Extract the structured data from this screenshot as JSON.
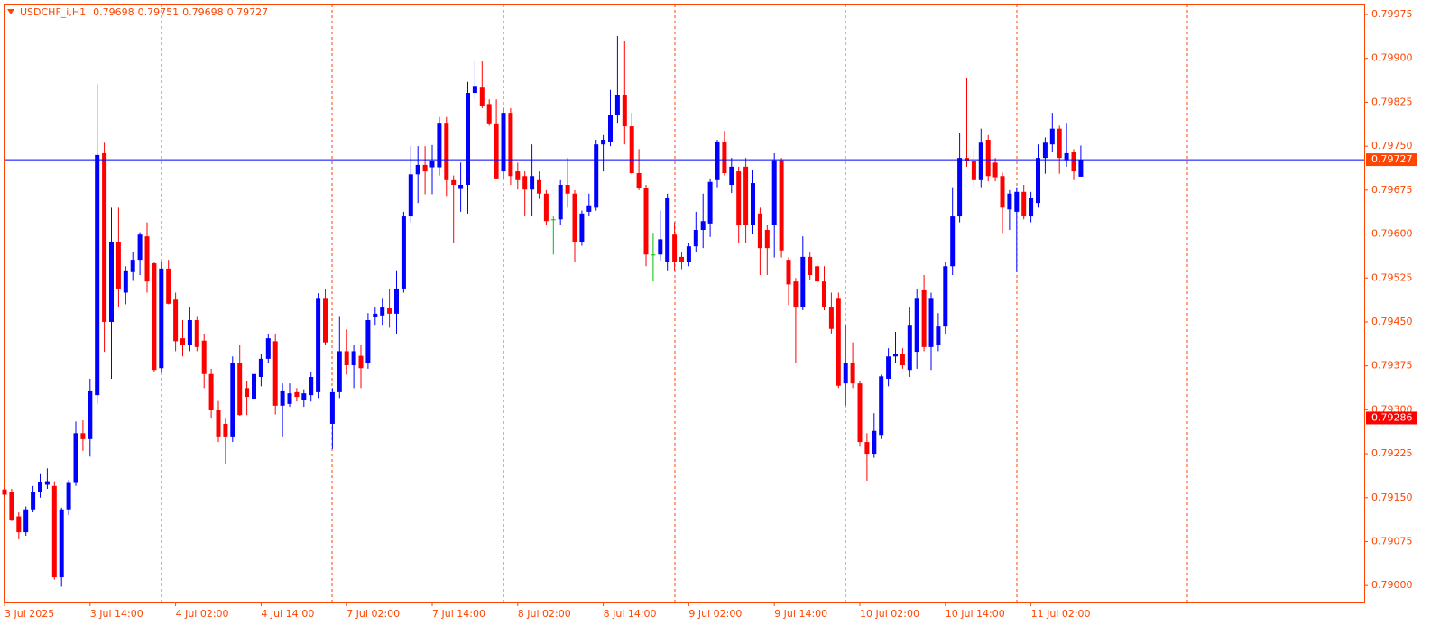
{
  "chart_data": {
    "type": "candlestick",
    "title": "USDCHF_i,H1",
    "ohlc_label": [
      0.79698,
      0.79751,
      0.79698,
      0.79727
    ],
    "categories": [
      "3 Jul 2025",
      null,
      null,
      null,
      null,
      null,
      null,
      null,
      null,
      null,
      null,
      null,
      "3 Jul 14:00",
      null,
      null,
      null,
      null,
      null,
      null,
      null,
      null,
      null,
      null,
      null,
      "4 Jul 02:00",
      null,
      null,
      null,
      null,
      null,
      null,
      null,
      null,
      null,
      null,
      null,
      "4 Jul 14:00",
      null,
      null,
      null,
      null,
      null,
      null,
      null,
      null,
      null,
      null,
      null,
      "7 Jul 02:00",
      null,
      null,
      null,
      null,
      null,
      null,
      null,
      null,
      null,
      null,
      null,
      "7 Jul 14:00",
      null,
      null,
      null,
      null,
      null,
      null,
      null,
      null,
      null,
      null,
      null,
      "8 Jul 02:00",
      null,
      null,
      null,
      null,
      null,
      null,
      null,
      null,
      null,
      null,
      null,
      "8 Jul 14:00",
      null,
      null,
      null,
      null,
      null,
      null,
      null,
      null,
      null,
      null,
      null,
      "9 Jul 02:00",
      null,
      null,
      null,
      null,
      null,
      null,
      null,
      null,
      null,
      null,
      null,
      "9 Jul 14:00",
      null,
      null,
      null,
      null,
      null,
      null,
      null,
      null,
      null,
      null,
      null,
      "10 Jul 02:00",
      null,
      null,
      null,
      null,
      null,
      null,
      null,
      null,
      null,
      null,
      null,
      "10 Jul 14:00",
      null,
      null,
      null,
      null,
      null,
      null,
      null,
      null,
      null,
      null,
      null,
      "11 Jul 02:00",
      null,
      null,
      null,
      null,
      null,
      null,
      null
    ],
    "open": [
      0.79164,
      0.7916,
      0.79118,
      0.79091,
      0.7913,
      0.7916,
      0.79172,
      0.7917,
      0.79014,
      0.7913,
      0.79175,
      0.7926,
      0.7925,
      0.79325,
      0.79738,
      0.7945,
      0.79587,
      0.795,
      0.79535,
      0.79556,
      0.79596,
      0.7955,
      0.79371,
      0.79541,
      0.79488,
      0.79422,
      0.7941,
      0.79453,
      0.79418,
      0.79361,
      0.79299,
      0.79276,
      0.79253,
      0.7938,
      0.79337,
      0.79319,
      0.79356,
      0.79387,
      0.79417,
      0.79307,
      0.7931,
      0.7933,
      0.79316,
      0.79325,
      0.7933,
      0.79491,
      0.79276,
      0.7933,
      0.794,
      0.79376,
      0.79392,
      0.7938,
      0.79458,
      0.79461,
      0.79473,
      0.79464,
      0.79507,
      0.7963,
      0.79702,
      0.79718,
      0.79714,
      0.79714,
      0.7979,
      0.79692,
      0.79677,
      0.79684,
      0.79841,
      0.7985,
      0.79822,
      0.79789,
      0.79707,
      0.79807,
      0.79707,
      0.79699,
      0.79676,
      0.79692,
      0.79669,
      0.79625,
      0.79625,
      0.79684,
      0.79669,
      0.79587,
      0.79638,
      0.79645,
      0.79753,
      0.79758,
      0.79803,
      0.79838,
      0.79784,
      0.79704,
      0.79679,
      0.79565,
      0.79565,
      0.79553,
      0.79599,
      0.79561,
      0.79553,
      0.79579,
      0.79607,
      0.79618,
      0.79692,
      0.79758,
      0.79684,
      0.79707,
      0.79715,
      0.79615,
      0.79635,
      0.79607,
      0.79615,
      0.79726,
      0.79556,
      0.79519,
      0.79476,
      0.79561,
      0.79545,
      0.79519,
      0.79476,
      0.79491,
      0.79345,
      0.7938,
      0.79345,
      0.79245,
      0.79225,
      0.79257,
      0.79353,
      0.79391,
      0.79396,
      0.79368,
      0.79399,
      0.79504,
      0.79407,
      0.7941,
      0.79442,
      0.79545,
      0.7963,
      0.7973,
      0.79724,
      0.79692,
      0.79761,
      0.79722,
      0.79699,
      0.79642,
      0.79638,
      0.79672,
      0.7963,
      0.79653,
      0.7973,
      0.79753,
      0.7978,
      0.79726,
      0.7974,
      0.79698
    ],
    "high": [
      0.79167,
      0.79165,
      0.79125,
      0.79135,
      0.7917,
      0.7919,
      0.792,
      0.79178,
      0.79133,
      0.7918,
      0.7928,
      0.79282,
      0.79353,
      0.79856,
      0.79756,
      0.79645,
      0.79645,
      0.79545,
      0.7957,
      0.79603,
      0.7962,
      0.79553,
      0.79553,
      0.79556,
      0.795,
      0.79453,
      0.79476,
      0.7946,
      0.7943,
      0.7937,
      0.79315,
      0.79285,
      0.79391,
      0.7941,
      0.79349,
      0.7936,
      0.79395,
      0.7943,
      0.7943,
      0.79345,
      0.79345,
      0.79337,
      0.79335,
      0.79365,
      0.79499,
      0.79507,
      0.79337,
      0.7946,
      0.79437,
      0.7941,
      0.7941,
      0.79465,
      0.79476,
      0.79491,
      0.79507,
      0.79538,
      0.79638,
      0.7975,
      0.7975,
      0.7975,
      0.79752,
      0.798,
      0.798,
      0.797,
      0.79722,
      0.7986,
      0.79895,
      0.79895,
      0.7983,
      0.7983,
      0.79815,
      0.79815,
      0.79722,
      0.79707,
      0.79753,
      0.79707,
      0.79675,
      0.7963,
      0.79692,
      0.7973,
      0.79675,
      0.7964,
      0.79669,
      0.79761,
      0.79769,
      0.79846,
      0.79938,
      0.7993,
      0.79807,
      0.79745,
      0.79684,
      0.79602,
      0.7964,
      0.79669,
      0.7962,
      0.7957,
      0.79584,
      0.79638,
      0.79669,
      0.79695,
      0.79761,
      0.79776,
      0.7973,
      0.79715,
      0.7973,
      0.7971,
      0.79645,
      0.79615,
      0.79738,
      0.7973,
      0.7956,
      0.79525,
      0.79596,
      0.7957,
      0.79553,
      0.79545,
      0.795,
      0.795,
      0.79445,
      0.79415,
      0.7935,
      0.7926,
      0.79294,
      0.7936,
      0.79405,
      0.79433,
      0.79405,
      0.79476,
      0.79507,
      0.7953,
      0.795,
      0.79465,
      0.79553,
      0.7968,
      0.79772,
      0.79866,
      0.79745,
      0.7978,
      0.79769,
      0.7973,
      0.79705,
      0.79675,
      0.7968,
      0.79684,
      0.79672,
      0.79753,
      0.79765,
      0.79807,
      0.79785,
      0.7979,
      0.79745,
      0.79751
    ],
    "low": [
      0.7915,
      0.7911,
      0.79079,
      0.79085,
      0.79125,
      0.7915,
      0.79165,
      0.7901,
      0.78998,
      0.7912,
      0.7917,
      0.7923,
      0.7922,
      0.7931,
      0.79399,
      0.79353,
      0.79476,
      0.7948,
      0.7952,
      0.7953,
      0.795,
      0.79365,
      0.79365,
      0.7948,
      0.794,
      0.79391,
      0.794,
      0.794,
      0.79337,
      0.79285,
      0.79245,
      0.79207,
      0.79245,
      0.7929,
      0.79291,
      0.79294,
      0.7934,
      0.7938,
      0.79292,
      0.79253,
      0.79305,
      0.79314,
      0.79305,
      0.79314,
      0.7932,
      0.7941,
      0.79233,
      0.7932,
      0.7936,
      0.79337,
      0.79337,
      0.7937,
      0.79445,
      0.79445,
      0.7944,
      0.7943,
      0.795,
      0.7962,
      0.79653,
      0.79668,
      0.79668,
      0.797,
      0.79665,
      0.79584,
      0.79638,
      0.79635,
      0.7983,
      0.79815,
      0.79785,
      0.79695,
      0.79695,
      0.79684,
      0.79676,
      0.7963,
      0.7963,
      0.7966,
      0.79615,
      0.79565,
      0.79615,
      0.79645,
      0.79553,
      0.7958,
      0.7963,
      0.7964,
      0.79707,
      0.7975,
      0.7979,
      0.79753,
      0.79702,
      0.79675,
      0.79545,
      0.79519,
      0.79555,
      0.79538,
      0.79538,
      0.7954,
      0.79545,
      0.7957,
      0.79576,
      0.79595,
      0.7968,
      0.797,
      0.7967,
      0.79584,
      0.79584,
      0.796,
      0.7953,
      0.7953,
      0.7956,
      0.7956,
      0.79479,
      0.7938,
      0.7947,
      0.79522,
      0.7951,
      0.7947,
      0.7943,
      0.79337,
      0.79307,
      0.79337,
      0.79237,
      0.79179,
      0.79218,
      0.7925,
      0.7934,
      0.7938,
      0.7937,
      0.79356,
      0.7937,
      0.794,
      0.79368,
      0.794,
      0.7943,
      0.7953,
      0.7962,
      0.79715,
      0.7968,
      0.7968,
      0.7969,
      0.7969,
      0.79602,
      0.79607,
      0.79535,
      0.79625,
      0.7962,
      0.79645,
      0.79703,
      0.7974,
      0.79703,
      0.79715,
      0.79692,
      0.79698
    ],
    "close": [
      0.79155,
      0.79111,
      0.79091,
      0.7913,
      0.7916,
      0.79176,
      0.79178,
      0.79014,
      0.7913,
      0.79175,
      0.7926,
      0.7925,
      0.79333,
      0.79735,
      0.7945,
      0.79587,
      0.79507,
      0.79538,
      0.79556,
      0.79599,
      0.79519,
      0.79368,
      0.79541,
      0.79481,
      0.79417,
      0.7941,
      0.79453,
      0.79407,
      0.79361,
      0.79299,
      0.79253,
      0.79253,
      0.7938,
      0.79291,
      0.79322,
      0.79361,
      0.79387,
      0.79422,
      0.79307,
      0.79333,
      0.79328,
      0.79322,
      0.79328,
      0.79356,
      0.79491,
      0.79415,
      0.7933,
      0.794,
      0.79376,
      0.794,
      0.79371,
      0.79453,
      0.79464,
      0.79476,
      0.79464,
      0.79507,
      0.7963,
      0.79702,
      0.79718,
      0.79707,
      0.79725,
      0.7979,
      0.79692,
      0.79684,
      0.79684,
      0.79841,
      0.79853,
      0.79818,
      0.79789,
      0.79695,
      0.79807,
      0.79699,
      0.79692,
      0.79676,
      0.79699,
      0.79669,
      0.79622,
      0.79625,
      0.79684,
      0.79669,
      0.79587,
      0.79635,
      0.79649,
      0.79753,
      0.79761,
      0.79803,
      0.79838,
      0.79784,
      0.79704,
      0.79679,
      0.79565,
      0.79565,
      0.79591,
      0.79661,
      0.79553,
      0.79553,
      0.79579,
      0.79607,
      0.79622,
      0.79689,
      0.79758,
      0.79704,
      0.79715,
      0.79615,
      0.79615,
      0.79687,
      0.79576,
      0.79576,
      0.79726,
      0.79572,
      0.79514,
      0.79476,
      0.79561,
      0.7953,
      0.79519,
      0.79476,
      0.79438,
      0.79341,
      0.7938,
      0.79345,
      0.79245,
      0.79225,
      0.79264,
      0.79357,
      0.79391,
      0.79396,
      0.79376,
      0.79445,
      0.79491,
      0.79407,
      0.79491,
      0.79442,
      0.79545,
      0.7963,
      0.7973,
      0.79725,
      0.79692,
      0.79756,
      0.79699,
      0.79697,
      0.79645,
      0.79669,
      0.79672,
      0.7963,
      0.79661,
      0.7973,
      0.79756,
      0.7978,
      0.7973,
      0.79738,
      0.79707,
      0.79727
    ],
    "up_color": "#0000ff",
    "down_color": "#ff0000",
    "doji_color": "#00c000",
    "ylim": [
      0.78971,
      0.79992
    ],
    "yticks": [
      {
        "value": 0.79,
        "label": "0.79000"
      },
      {
        "value": 0.79075,
        "label": "0.79075"
      },
      {
        "value": 0.7915,
        "label": "0.79150"
      },
      {
        "value": 0.79225,
        "label": "0.79225"
      },
      {
        "value": 0.793,
        "label": "0.79300"
      },
      {
        "value": 0.79375,
        "label": "0.79375"
      },
      {
        "value": 0.7945,
        "label": "0.79450"
      },
      {
        "value": 0.79525,
        "label": "0.79525"
      },
      {
        "value": 0.796,
        "label": "0.79600"
      },
      {
        "value": 0.79675,
        "label": "0.79675"
      },
      {
        "value": 0.7975,
        "label": "0.79750"
      },
      {
        "value": 0.79825,
        "label": "0.79825"
      },
      {
        "value": 0.799,
        "label": "0.79900"
      },
      {
        "value": 0.79975,
        "label": "0.79975"
      }
    ],
    "hlines": [
      {
        "value": 0.79727,
        "color": "#0000ff",
        "label_color": "#ff4500"
      },
      {
        "value": 0.79286,
        "color": "#ff0000",
        "label_color": "#ff0000"
      }
    ]
  }
}
